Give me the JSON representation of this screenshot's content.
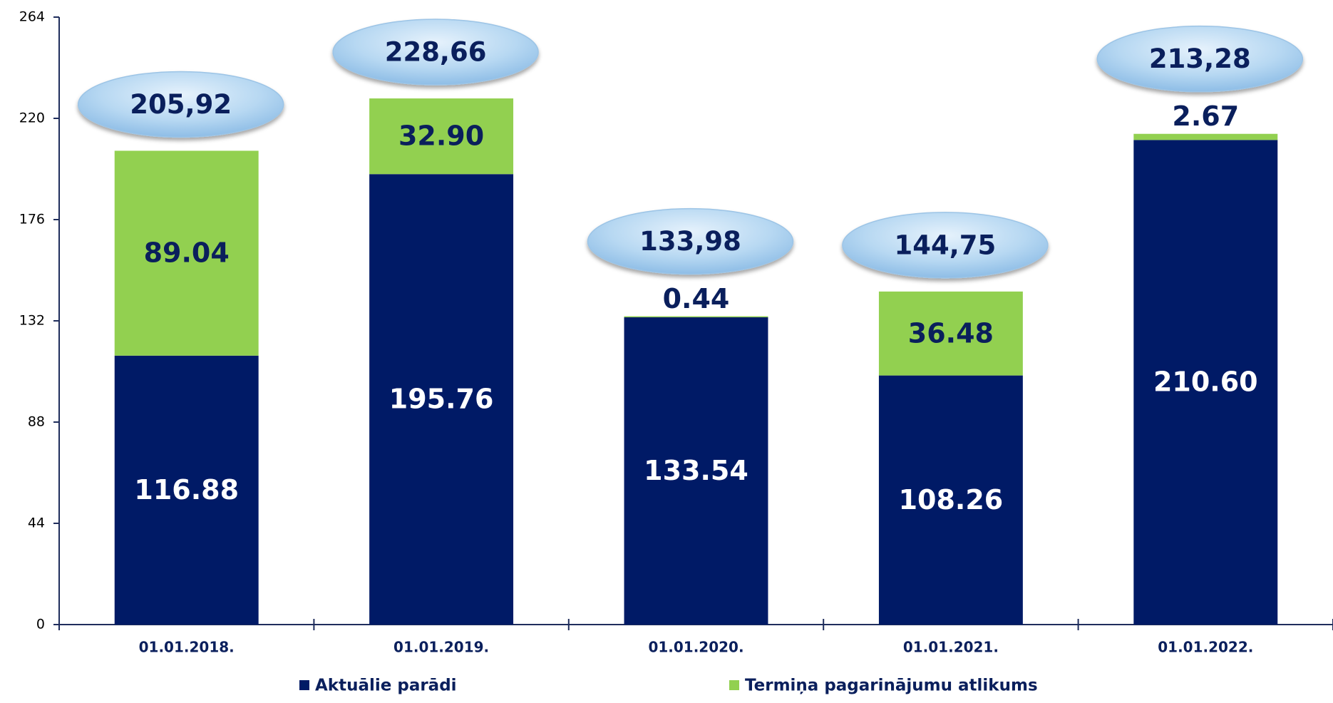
{
  "chart_data": {
    "type": "stacked_bar",
    "categories": [
      "01.01.2018.",
      "01.01.2019.",
      "01.01.2020.",
      "01.01.2021.",
      "01.01.2022."
    ],
    "series": [
      {
        "name": "Aktuālie parādi",
        "color": "#001a66",
        "label_color": "#ffffff",
        "values": [
          116.88,
          195.76,
          133.54,
          108.26,
          210.6
        ],
        "value_labels": [
          "116.88",
          "195.76",
          "133.54",
          "108.26",
          "210.60"
        ]
      },
      {
        "name": "Termiņa pagarinājumu atlikums",
        "color": "#92d050",
        "label_color": "#0a1f5c",
        "values": [
          89.04,
          32.9,
          0.44,
          36.48,
          2.67
        ],
        "value_labels": [
          "89.04",
          "32.90",
          "0.44",
          "36.48",
          "2.67"
        ]
      }
    ],
    "totals": {
      "values": [
        205.92,
        228.66,
        133.98,
        144.75,
        213.28
      ],
      "value_labels": [
        "205,92",
        "228,66",
        "133,98",
        "144,75",
        "213,28"
      ]
    },
    "ylim": [
      0,
      264
    ],
    "yticks": [
      0,
      44,
      88,
      132,
      176,
      220,
      264
    ],
    "grid": false,
    "legend": "bottom"
  }
}
